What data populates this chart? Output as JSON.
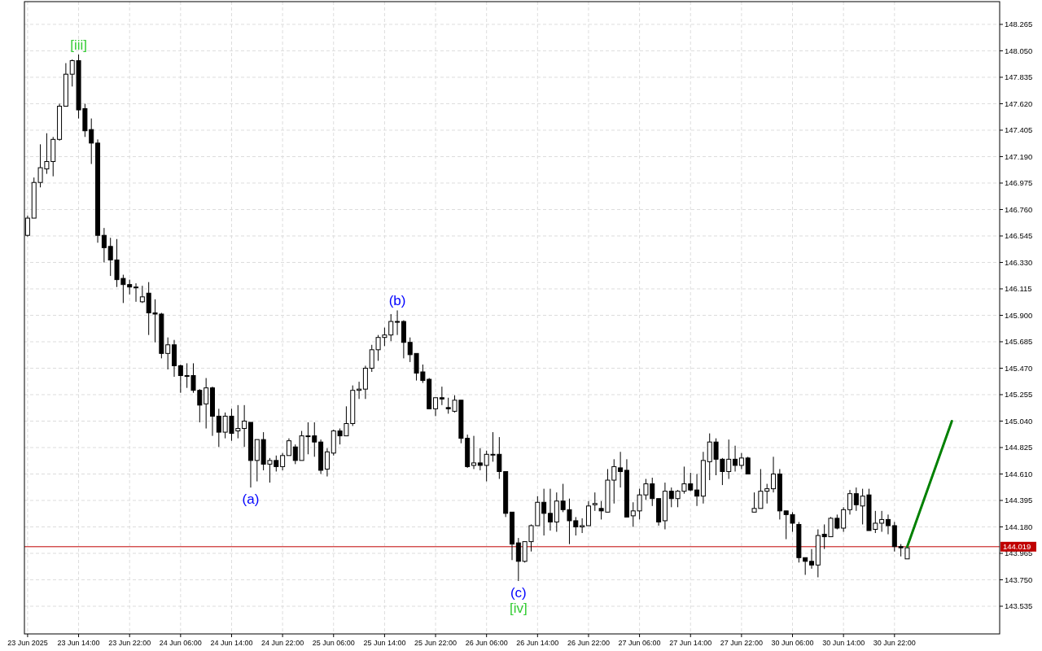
{
  "chart_data": {
    "type": "candlestick",
    "categories": [
      "23 Jun 2025",
      null,
      null,
      null,
      null,
      null,
      null,
      null,
      "23 Jun 14:00",
      null,
      null,
      null,
      null,
      null,
      null,
      null,
      "23 Jun 22:00",
      null,
      null,
      null,
      null,
      null,
      null,
      null,
      "24 Jun 06:00",
      null,
      null,
      null,
      null,
      null,
      null,
      null,
      "24 Jun 14:00",
      null,
      null,
      null,
      null,
      null,
      null,
      null,
      "24 Jun 22:00",
      null,
      null,
      null,
      null,
      null,
      null,
      null,
      "25 Jun 06:00",
      null,
      null,
      null,
      null,
      null,
      null,
      null,
      "25 Jun 14:00",
      null,
      null,
      null,
      null,
      null,
      null,
      null,
      "25 Jun 22:00",
      null,
      null,
      null,
      null,
      null,
      null,
      null,
      "26 Jun 06:00",
      null,
      null,
      null,
      null,
      null,
      null,
      null,
      "26 Jun 14:00",
      null,
      null,
      null,
      null,
      null,
      null,
      null,
      "26 Jun 22:00",
      null,
      null,
      null,
      null,
      null,
      null,
      null,
      "27 Jun 06:00",
      null,
      null,
      null,
      null,
      null,
      null,
      null,
      "27 Jun 14:00",
      null,
      null,
      null,
      null,
      null,
      null,
      null,
      "27 Jun 22:00",
      null,
      null,
      null,
      null,
      null,
      null,
      null,
      "30 Jun 06:00",
      null,
      null,
      null,
      null,
      null,
      null,
      null,
      "30 Jun 14:00",
      null,
      null,
      null,
      null,
      null,
      null,
      null,
      "30 Jun 22:00",
      null,
      null,
      null,
      null,
      null,
      null,
      null,
      null,
      null,
      null,
      null,
      null,
      null,
      null,
      null,
      null
    ],
    "ohlc": [
      [
        146.55,
        146.71,
        146.54,
        146.69
      ],
      [
        146.69,
        147.02,
        146.69,
        146.98
      ],
      [
        146.98,
        147.29,
        146.94,
        147.1
      ],
      [
        147.09,
        147.38,
        147.05,
        147.15
      ],
      [
        147.15,
        147.35,
        147.03,
        147.33
      ],
      [
        147.33,
        147.62,
        147.32,
        147.6
      ],
      [
        147.6,
        147.95,
        147.6,
        147.86
      ],
      [
        147.86,
        147.98,
        147.76,
        147.97
      ],
      [
        147.97,
        148.02,
        147.5,
        147.57
      ],
      [
        147.58,
        147.62,
        147.35,
        147.4
      ],
      [
        147.41,
        147.5,
        147.13,
        147.3
      ],
      [
        147.3,
        147.33,
        146.49,
        146.55
      ],
      [
        146.55,
        146.61,
        146.33,
        146.45
      ],
      [
        146.46,
        146.53,
        146.22,
        146.35
      ],
      [
        146.35,
        146.52,
        146.13,
        146.19
      ],
      [
        146.2,
        146.23,
        146.0,
        146.15
      ],
      [
        146.15,
        146.19,
        146.07,
        146.13
      ],
      [
        146.13,
        146.16,
        146.01,
        146.13
      ],
      [
        146.01,
        146.14,
        146.0,
        146.05
      ],
      [
        146.08,
        146.17,
        145.74,
        145.92
      ],
      [
        145.92,
        146.03,
        145.68,
        145.91
      ],
      [
        145.91,
        145.92,
        145.55,
        145.59
      ],
      [
        145.59,
        145.72,
        145.46,
        145.66
      ],
      [
        145.66,
        145.7,
        145.4,
        145.49
      ],
      [
        145.49,
        145.5,
        145.27,
        145.41
      ],
      [
        145.41,
        145.51,
        145.31,
        145.41
      ],
      [
        145.41,
        145.51,
        145.27,
        145.29
      ],
      [
        145.29,
        145.3,
        145.03,
        145.17
      ],
      [
        145.18,
        145.39,
        144.98,
        145.31
      ],
      [
        145.31,
        145.32,
        144.92,
        145.08
      ],
      [
        145.08,
        145.14,
        144.83,
        144.95
      ],
      [
        144.95,
        145.11,
        144.9,
        145.08
      ],
      [
        145.08,
        145.14,
        144.88,
        144.94
      ],
      [
        144.96,
        145.17,
        144.9,
        144.98
      ],
      [
        144.98,
        145.17,
        144.83,
        145.04
      ],
      [
        145.03,
        145.03,
        144.5,
        144.72
      ],
      [
        144.72,
        144.89,
        144.55,
        144.89
      ],
      [
        144.89,
        144.95,
        144.64,
        144.69
      ],
      [
        144.69,
        144.74,
        144.54,
        144.72
      ],
      [
        144.72,
        144.76,
        144.63,
        144.67
      ],
      [
        144.67,
        144.78,
        144.64,
        144.76
      ],
      [
        144.76,
        144.9,
        144.76,
        144.88
      ],
      [
        144.83,
        144.85,
        144.69,
        144.72
      ],
      [
        144.72,
        144.96,
        144.72,
        144.92
      ],
      [
        144.92,
        145.03,
        144.77,
        144.92
      ],
      [
        144.92,
        145.03,
        144.75,
        144.87
      ],
      [
        144.87,
        144.89,
        144.61,
        144.64
      ],
      [
        144.65,
        144.82,
        144.59,
        144.79
      ],
      [
        144.78,
        144.97,
        144.76,
        144.96
      ],
      [
        144.96,
        144.98,
        144.85,
        144.92
      ],
      [
        144.92,
        145.16,
        144.92,
        145.02
      ],
      [
        145.02,
        145.33,
        145.0,
        145.29
      ],
      [
        145.29,
        145.36,
        145.22,
        145.3
      ],
      [
        145.3,
        145.49,
        145.22,
        145.47
      ],
      [
        145.47,
        145.66,
        145.44,
        145.62
      ],
      [
        145.62,
        145.74,
        145.53,
        145.72
      ],
      [
        145.72,
        145.8,
        145.65,
        145.74
      ],
      [
        145.74,
        145.91,
        145.69,
        145.85
      ],
      [
        145.85,
        145.94,
        145.74,
        145.85
      ],
      [
        145.85,
        145.86,
        145.55,
        145.68
      ],
      [
        145.68,
        145.72,
        145.52,
        145.58
      ],
      [
        145.59,
        145.59,
        145.37,
        145.43
      ],
      [
        145.44,
        145.5,
        145.35,
        145.37
      ],
      [
        145.38,
        145.39,
        145.14,
        145.14
      ],
      [
        145.14,
        145.23,
        145.08,
        145.23
      ],
      [
        145.23,
        145.32,
        145.17,
        145.22
      ],
      [
        145.15,
        145.23,
        145.1,
        145.14
      ],
      [
        145.12,
        145.25,
        145.11,
        145.21
      ],
      [
        145.21,
        145.21,
        144.86,
        144.9
      ],
      [
        144.9,
        144.93,
        144.66,
        144.67
      ],
      [
        144.68,
        144.92,
        144.65,
        144.7
      ],
      [
        144.7,
        144.82,
        144.64,
        144.68
      ],
      [
        144.68,
        144.8,
        144.55,
        144.77
      ],
      [
        144.77,
        144.95,
        144.71,
        144.77
      ],
      [
        144.77,
        144.91,
        144.57,
        144.63
      ],
      [
        144.63,
        144.63,
        144.26,
        144.29
      ],
      [
        144.3,
        144.3,
        143.91,
        144.04
      ],
      [
        144.05,
        144.09,
        143.74,
        143.9
      ],
      [
        143.9,
        144.06,
        143.89,
        144.06
      ],
      [
        144.06,
        144.2,
        143.98,
        144.19
      ],
      [
        144.19,
        144.43,
        144.19,
        144.38
      ],
      [
        144.38,
        144.49,
        144.11,
        144.29
      ],
      [
        144.29,
        144.49,
        144.15,
        144.22
      ],
      [
        144.22,
        144.46,
        144.14,
        144.39
      ],
      [
        144.39,
        144.53,
        144.3,
        144.32
      ],
      [
        144.32,
        144.41,
        144.04,
        144.23
      ],
      [
        144.23,
        144.26,
        144.11,
        144.18
      ],
      [
        144.18,
        144.25,
        144.13,
        144.19
      ],
      [
        144.19,
        144.39,
        144.19,
        144.35
      ],
      [
        144.36,
        144.46,
        144.31,
        144.37
      ],
      [
        144.33,
        144.39,
        144.24,
        144.31
      ],
      [
        144.3,
        144.65,
        144.3,
        144.56
      ],
      [
        144.56,
        144.73,
        144.37,
        144.67
      ],
      [
        144.66,
        144.79,
        144.5,
        144.63
      ],
      [
        144.64,
        144.73,
        144.26,
        144.26
      ],
      [
        144.27,
        144.38,
        144.18,
        144.31
      ],
      [
        144.31,
        144.49,
        144.24,
        144.44
      ],
      [
        144.44,
        144.57,
        144.4,
        144.53
      ],
      [
        144.53,
        144.58,
        144.35,
        144.41
      ],
      [
        144.41,
        144.41,
        144.19,
        144.22
      ],
      [
        144.23,
        144.54,
        144.16,
        144.47
      ],
      [
        144.47,
        144.5,
        144.34,
        144.41
      ],
      [
        144.41,
        144.48,
        144.34,
        144.47
      ],
      [
        144.47,
        144.67,
        144.45,
        144.53
      ],
      [
        144.53,
        144.62,
        144.47,
        144.48
      ],
      [
        144.48,
        144.61,
        144.35,
        144.43
      ],
      [
        144.43,
        144.79,
        144.37,
        144.72
      ],
      [
        144.71,
        144.94,
        144.56,
        144.87
      ],
      [
        144.87,
        144.9,
        144.6,
        144.73
      ],
      [
        144.73,
        144.74,
        144.52,
        144.63
      ],
      [
        144.63,
        144.89,
        144.57,
        144.73
      ],
      [
        144.73,
        144.84,
        144.63,
        144.68
      ],
      [
        144.68,
        144.78,
        144.65,
        144.74
      ],
      [
        144.74,
        144.75,
        144.61,
        144.61
      ],
      [
        144.3,
        144.46,
        144.3,
        144.33
      ],
      [
        144.33,
        144.65,
        144.33,
        144.47
      ],
      [
        144.47,
        144.53,
        144.37,
        144.49
      ],
      [
        144.49,
        144.75,
        144.46,
        144.61
      ],
      [
        144.61,
        144.65,
        144.24,
        144.31
      ],
      [
        144.31,
        144.31,
        144.08,
        144.28
      ],
      [
        144.28,
        144.3,
        144.14,
        144.21
      ],
      [
        144.2,
        144.22,
        143.89,
        143.93
      ],
      [
        143.93,
        143.93,
        143.79,
        143.9
      ],
      [
        143.9,
        144.0,
        143.84,
        143.87
      ],
      [
        143.87,
        144.16,
        143.77,
        144.11
      ],
      [
        144.12,
        144.2,
        144.0,
        144.1
      ],
      [
        144.1,
        144.26,
        144.1,
        144.25
      ],
      [
        144.25,
        144.28,
        144.16,
        144.17
      ],
      [
        144.17,
        144.34,
        144.14,
        144.32
      ],
      [
        144.32,
        144.48,
        144.28,
        144.45
      ],
      [
        144.45,
        144.5,
        144.31,
        144.36
      ],
      [
        144.35,
        144.49,
        144.2,
        144.43
      ],
      [
        144.44,
        144.49,
        144.15,
        144.15
      ],
      [
        144.16,
        144.31,
        144.13,
        144.21
      ],
      [
        144.21,
        144.31,
        144.14,
        144.24
      ],
      [
        144.24,
        144.28,
        144.12,
        144.19
      ],
      [
        144.19,
        144.22,
        143.98,
        144.02
      ],
      [
        144.02,
        144.04,
        143.94,
        144.01
      ],
      [
        143.92,
        144.01,
        143.92,
        144.01
      ],
      null,
      null,
      null,
      null,
      null,
      null,
      null,
      null,
      null,
      null,
      null,
      null,
      null,
      null
    ],
    "series": [
      {
        "type": "line",
        "color": "#008000",
        "values": [
          null,
          null,
          null,
          null,
          null,
          null,
          null,
          null,
          null,
          null,
          null,
          null,
          null,
          null,
          null,
          null,
          null,
          null,
          null,
          null,
          null,
          null,
          null,
          null,
          null,
          null,
          null,
          null,
          null,
          null,
          null,
          null,
          null,
          null,
          null,
          null,
          null,
          null,
          null,
          null,
          null,
          null,
          null,
          null,
          null,
          null,
          null,
          null,
          null,
          null,
          null,
          null,
          null,
          null,
          null,
          null,
          null,
          null,
          null,
          null,
          null,
          null,
          null,
          null,
          null,
          null,
          null,
          null,
          null,
          null,
          null,
          null,
          null,
          null,
          null,
          null,
          null,
          null,
          null,
          null,
          null,
          null,
          null,
          null,
          null,
          null,
          null,
          null,
          null,
          null,
          null,
          null,
          null,
          null,
          null,
          null,
          null,
          null,
          null,
          null,
          null,
          null,
          null,
          null,
          null,
          null,
          null,
          null,
          null,
          null,
          null,
          null,
          null,
          null,
          null,
          null,
          null,
          null,
          null,
          null,
          null,
          null,
          null,
          null,
          null,
          null,
          null,
          null,
          null,
          null,
          null,
          null,
          null,
          null,
          null,
          null,
          null,
          null,
          144.02,
          null,
          null,
          null,
          null,
          null,
          null,
          145.04,
          null,
          null,
          null,
          null,
          null,
          null,
          null
        ]
      }
    ],
    "ylim": [
      143.31,
      148.45
    ],
    "yticks": [
      {
        "value": 143.535,
        "label": "143.535"
      },
      {
        "value": 143.75,
        "label": "143.750"
      },
      {
        "value": 143.965,
        "label": "143.965"
      },
      {
        "value": 144.18,
        "label": "144.180"
      },
      {
        "value": 144.395,
        "label": "144.395"
      },
      {
        "value": 144.61,
        "label": "144.610"
      },
      {
        "value": 144.825,
        "label": "144.825"
      },
      {
        "value": 145.04,
        "label": "145.040"
      },
      {
        "value": 145.255,
        "label": "145.255"
      },
      {
        "value": 145.47,
        "label": "145.470"
      },
      {
        "value": 145.685,
        "label": "145.685"
      },
      {
        "value": 145.9,
        "label": "145.900"
      },
      {
        "value": 146.115,
        "label": "146.115"
      },
      {
        "value": 146.33,
        "label": "146.330"
      },
      {
        "value": 146.545,
        "label": "146.545"
      },
      {
        "value": 146.76,
        "label": "146.760"
      },
      {
        "value": 146.975,
        "label": "146.975"
      },
      {
        "value": 147.19,
        "label": "147.190"
      },
      {
        "value": 147.405,
        "label": "147.405"
      },
      {
        "value": 147.62,
        "label": "147.620"
      },
      {
        "value": 147.835,
        "label": "147.835"
      },
      {
        "value": 148.05,
        "label": "148.050"
      },
      {
        "value": 148.265,
        "label": "148.265"
      }
    ],
    "ref_lines": [
      {
        "axis": "y",
        "value": 144.019,
        "label": "144.019",
        "color": "#c00000"
      }
    ],
    "annotations": [
      {
        "text": "[iii]",
        "y": 148.02
      },
      {
        "text": "(a)",
        "y": 144.5
      },
      {
        "text": "(b)",
        "y": 145.94
      },
      {
        "text": "(c)",
        "y": 143.74
      },
      {
        "text": "[iv]",
        "y": 143.74
      }
    ],
    "grid": true
  }
}
